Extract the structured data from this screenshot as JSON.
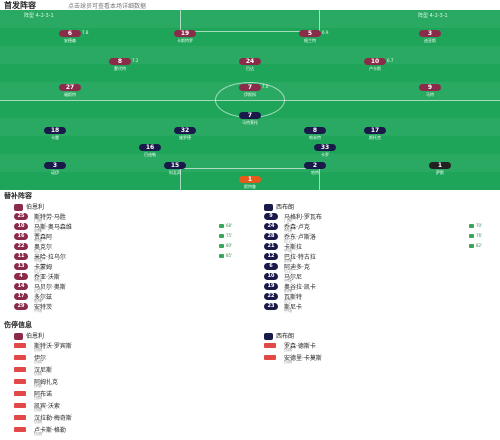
{
  "header": {
    "title": "首发阵容",
    "subtitle": "点击球员可查看本场详细数据"
  },
  "pitch": {
    "home_formation": "阵型 4-2-3-1",
    "away_formation": "阵型 4-2-3-1",
    "home_players": [
      {
        "num": "1",
        "name": "斯特鲁",
        "color": "gk1",
        "rating": ""
      },
      {
        "num": "6",
        "name": "安德森",
        "color": "red",
        "rating": "7.8"
      },
      {
        "num": "19",
        "name": "卡斯特罗",
        "color": "red",
        "rating": ""
      },
      {
        "num": "5",
        "name": "格兰特",
        "color": "red",
        "rating": "6.9"
      },
      {
        "num": "3",
        "name": "迪亚斯",
        "color": "red",
        "rating": ""
      },
      {
        "num": "8",
        "name": "蒙代特",
        "color": "red",
        "rating": "7.2"
      },
      {
        "num": "24",
        "name": "巴达",
        "color": "red",
        "rating": ""
      },
      {
        "num": "10",
        "name": "卢卡斯",
        "color": "red",
        "rating": "6.7"
      },
      {
        "num": "27",
        "name": "福斯特",
        "color": "red",
        "rating": ""
      },
      {
        "num": "7",
        "name": "伊斯科",
        "color": "red",
        "rating": "7.0"
      },
      {
        "num": "9",
        "name": "马特",
        "color": "red",
        "rating": ""
      }
    ],
    "away_players": [
      {
        "num": "7",
        "name": "马特莱托",
        "color": "navy",
        "rating": ""
      },
      {
        "num": "18",
        "name": "卡雷",
        "color": "navy",
        "rating": ""
      },
      {
        "num": "32",
        "name": "施罗德",
        "color": "navy",
        "rating": ""
      },
      {
        "num": "8",
        "name": "哈米特",
        "color": "navy",
        "rating": ""
      },
      {
        "num": "17",
        "name": "斯托克",
        "color": "navy",
        "rating": ""
      },
      {
        "num": "16",
        "name": "巴迪勒",
        "color": "navy",
        "rating": ""
      },
      {
        "num": "33",
        "name": "卡罗",
        "color": "navy",
        "rating": ""
      },
      {
        "num": "3",
        "name": "诺伊",
        "color": "navy",
        "rating": ""
      },
      {
        "num": "15",
        "name": "科瓦奇",
        "color": "navy",
        "rating": ""
      },
      {
        "num": "2",
        "name": "哈特",
        "color": "navy",
        "rating": ""
      },
      {
        "num": "1",
        "name": "萨默",
        "color": "gk2",
        "rating": ""
      }
    ]
  },
  "subs": {
    "title": "替补阵容",
    "home_team": "伯恩利",
    "away_team": "西布朗",
    "home": [
      {
        "num": "25",
        "name": "斯特劳·马胜",
        "sub": "门将"
      },
      {
        "num": "10",
        "name": "马斯·奥马森维",
        "sub": "前锋",
        "time": "68'"
      },
      {
        "num": "16",
        "name": "贾森阿",
        "sub": "中场",
        "time": "75'"
      },
      {
        "num": "22",
        "name": "奥克尔",
        "sub": "后卫",
        "time": "80'"
      },
      {
        "num": "11",
        "name": "米哈·拉乌尔",
        "sub": "中场",
        "time": "85'"
      },
      {
        "num": "13",
        "name": "卡蒙姆",
        "sub": "后卫"
      },
      {
        "num": "4",
        "name": "乔亚·沃斯",
        "sub": "中场"
      },
      {
        "num": "14",
        "name": "马贝尔·奥斯",
        "sub": "后卫"
      },
      {
        "num": "17",
        "name": "多尔兹",
        "sub": "前锋"
      },
      {
        "num": "29",
        "name": "安特茨",
        "sub": "中场"
      }
    ],
    "away": [
      {
        "num": "9",
        "name": "马格利·罗瓦布",
        "sub": "门将"
      },
      {
        "num": "24",
        "name": "乔森·卢克",
        "sub": "中场",
        "time": "70'"
      },
      {
        "num": "28",
        "name": "乔东·卢斯洛",
        "sub": "后卫",
        "time": "76'"
      },
      {
        "num": "21",
        "name": "卡斯拉",
        "sub": "中场",
        "time": "82'"
      },
      {
        "num": "12",
        "name": "巴拉·特古拉",
        "sub": "前锋"
      },
      {
        "num": "6",
        "name": "阿迪多·克",
        "sub": "后卫"
      },
      {
        "num": "10",
        "name": "马尔尼",
        "sub": "中场"
      },
      {
        "num": "19",
        "name": "奥谷拉·凯卡",
        "sub": "前锋"
      },
      {
        "num": "22",
        "name": "瓦斯特",
        "sub": "后卫"
      },
      {
        "num": "23",
        "name": "斯尼卡",
        "sub": "中场"
      }
    ]
  },
  "injuries": {
    "title": "伤停信息",
    "home_team": "伯恩利",
    "away_team": "西布朗",
    "home": [
      {
        "name": "斯特沃·罗宾斯",
        "status": "伤病"
      },
      {
        "name": "伊尔",
        "status": "伤病"
      },
      {
        "name": "汉尼斯",
        "status": "伤病"
      },
      {
        "name": "阿姆扎克",
        "status": "停赛"
      },
      {
        "name": "阿布诺",
        "status": "伤病"
      },
      {
        "name": "凯宾·沃索",
        "status": "伤病"
      },
      {
        "name": "汉拉勒·梅奇斯",
        "status": "伤病"
      },
      {
        "name": "卢卡斯·格勒",
        "status": "伤病"
      }
    ],
    "away": [
      {
        "name": "罗森·德斯卡",
        "status": "伤病"
      },
      {
        "name": "安德里·卡莫斯",
        "status": "伤病"
      }
    ]
  },
  "colors": {
    "pitch": "#1fa55a",
    "home": "#8b2b4a",
    "away": "#1a1a4a",
    "gk_home": "#e85a1a",
    "injury": "#e24848"
  }
}
